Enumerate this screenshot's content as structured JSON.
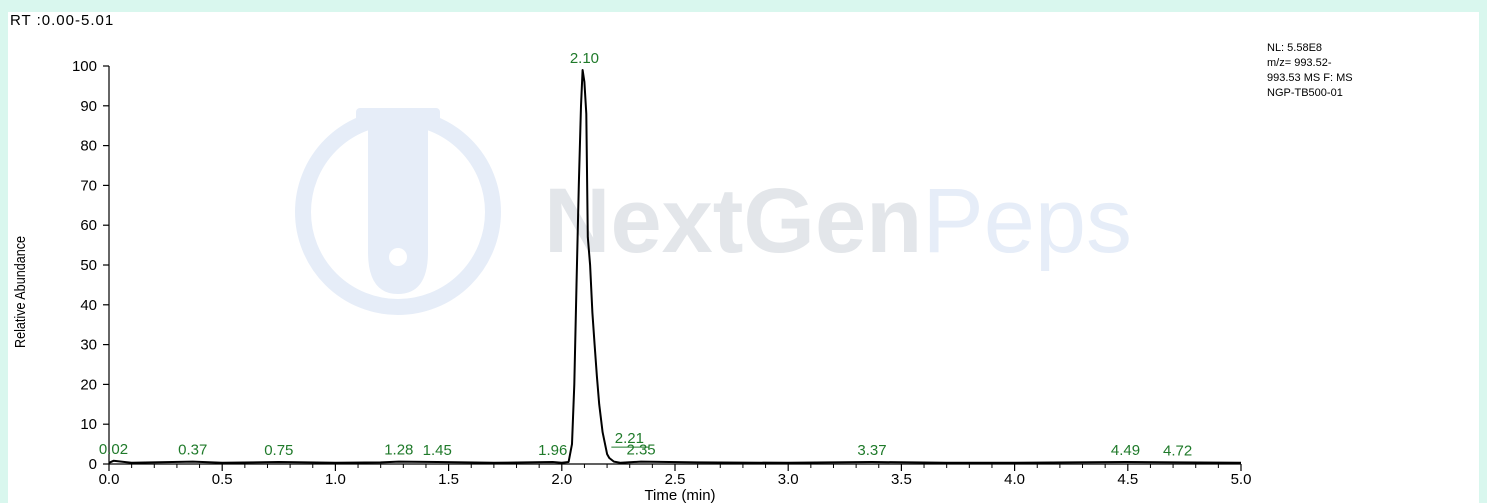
{
  "header": {
    "rt_range": "RT :0.00-5.01"
  },
  "info_box": {
    "lines": [
      "NL: 5.58E8",
      "m/z= 993.52-",
      "993.53 MS  F: MS",
      "NGP-TB500-01"
    ]
  },
  "watermark": {
    "brand_bold": "NextGen",
    "brand_light": "Peps",
    "icon": "test-tube-icon"
  },
  "colors": {
    "background": "#d9f7ee",
    "trace": "#000000",
    "peak_label": "#1f7a2a",
    "watermark": "#e6edf8"
  },
  "chart_data": {
    "type": "line",
    "xlabel": "Time (min)",
    "ylabel": "Relative Abundance",
    "xlim": [
      0.0,
      5.0
    ],
    "ylim": [
      0,
      100
    ],
    "x_ticks": [
      "0.0",
      "0.5",
      "1.0",
      "1.5",
      "2.0",
      "2.5",
      "3.0",
      "3.5",
      "4.0",
      "4.5",
      "5.0"
    ],
    "y_ticks": [
      "0",
      "10",
      "20",
      "30",
      "40",
      "50",
      "60",
      "70",
      "80",
      "90",
      "100"
    ],
    "grid": false,
    "series": [
      {
        "x": [
          0.0,
          0.02,
          0.1,
          0.37,
          0.5,
          0.75,
          1.0,
          1.2,
          1.28,
          1.45,
          1.7,
          1.96,
          2.0,
          2.03,
          2.045,
          2.055,
          2.065,
          2.075,
          2.085,
          2.092,
          2.1,
          2.108,
          2.115,
          2.125,
          2.135,
          2.145,
          2.155,
          2.165,
          2.18,
          2.2,
          2.21,
          2.23,
          2.26,
          2.35,
          2.6,
          3.0,
          3.37,
          3.7,
          4.0,
          4.49,
          4.72,
          5.0
        ],
        "y": [
          0.3,
          0.8,
          0.3,
          0.6,
          0.3,
          0.5,
          0.3,
          0.4,
          0.6,
          0.5,
          0.3,
          0.5,
          0.3,
          0.5,
          5,
          20,
          45,
          70,
          90,
          99,
          96,
          88,
          57,
          50,
          38,
          30,
          22,
          15,
          8,
          2.5,
          1.5,
          0.6,
          0.3,
          0.6,
          0.4,
          0.3,
          0.5,
          0.3,
          0.3,
          0.5,
          0.4,
          0.3
        ]
      }
    ],
    "peak_labels": [
      {
        "x": 0.02,
        "y": 0.8,
        "label": "0.02"
      },
      {
        "x": 0.37,
        "y": 0.6,
        "label": "0.37"
      },
      {
        "x": 0.75,
        "y": 0.5,
        "label": "0.75"
      },
      {
        "x": 1.28,
        "y": 0.6,
        "label": "1.28"
      },
      {
        "x": 1.45,
        "y": 0.5,
        "label": "1.45"
      },
      {
        "x": 1.96,
        "y": 0.5,
        "label": "1.96"
      },
      {
        "x": 2.1,
        "y": 99,
        "label": "2.10"
      },
      {
        "x": 2.21,
        "y": 3.5,
        "label": "2.21"
      },
      {
        "x": 2.35,
        "y": 0.6,
        "label": "2.35"
      },
      {
        "x": 3.37,
        "y": 0.5,
        "label": "3.37"
      },
      {
        "x": 4.49,
        "y": 0.5,
        "label": "4.49"
      },
      {
        "x": 4.72,
        "y": 0.4,
        "label": "4.72"
      }
    ]
  }
}
